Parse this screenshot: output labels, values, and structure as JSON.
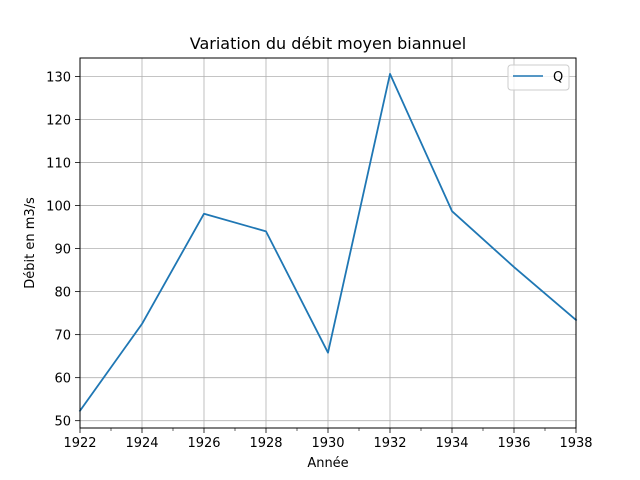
{
  "chart_data": {
    "type": "line",
    "title": "Variation du débit moyen biannuel",
    "xlabel": "Année",
    "ylabel": "Débit en m3/s",
    "xlim": [
      1922,
      1938
    ],
    "ylim": [
      48.3,
      134.3
    ],
    "x_ticks": [
      1922,
      1924,
      1926,
      1928,
      1930,
      1932,
      1934,
      1936,
      1938
    ],
    "y_ticks": [
      50,
      60,
      70,
      80,
      90,
      100,
      110,
      120,
      130
    ],
    "grid": true,
    "legend_position": "top-right",
    "series": [
      {
        "name": "Q",
        "color": "#1f77b4",
        "x": [
          1922,
          1924,
          1926,
          1928,
          1930,
          1932,
          1934,
          1936,
          1938
        ],
        "y": [
          52.3,
          72.5,
          98.1,
          94.0,
          65.8,
          130.6,
          98.7,
          85.7,
          73.4
        ]
      }
    ]
  }
}
